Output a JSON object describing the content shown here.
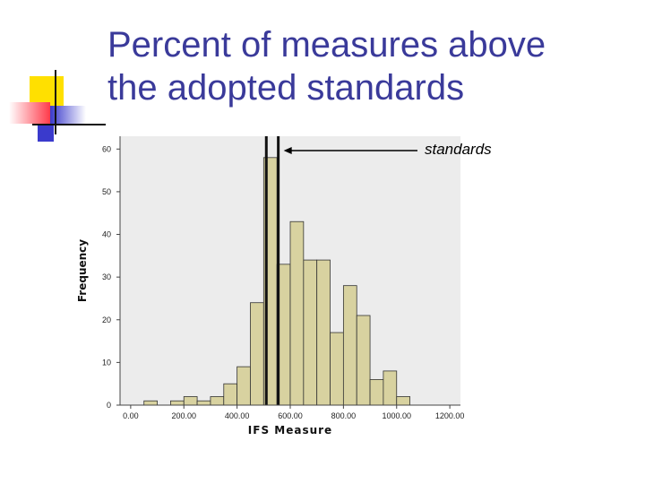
{
  "slide": {
    "title_line1": "Percent of measures above",
    "title_line2": "the adopted standards"
  },
  "decor": {
    "yellow": "#ffe000",
    "red": "#ff3a4a",
    "blue": "#3a3acc",
    "title_color": "#3a3a9a"
  },
  "chart_data": {
    "type": "bar",
    "subtype": "histogram",
    "title": "",
    "xlabel": "IFS Measure",
    "ylabel": "Frequency",
    "xlim": [
      -40,
      1240
    ],
    "ylim": [
      0,
      63
    ],
    "xticks": [
      0,
      200,
      400,
      600,
      800,
      1000,
      1200
    ],
    "xtick_labels": [
      "0.00",
      "200.00",
      "400.00",
      "600.00",
      "800.00",
      "1000.00",
      "1200.00"
    ],
    "yticks": [
      0,
      10,
      20,
      30,
      40,
      50,
      60
    ],
    "ytick_labels": [
      "0",
      "10",
      "20",
      "30",
      "40",
      "50",
      "60"
    ],
    "bin_width": 50,
    "bins": [
      {
        "start": 50,
        "count": 1
      },
      {
        "start": 150,
        "count": 1
      },
      {
        "start": 200,
        "count": 2
      },
      {
        "start": 250,
        "count": 1
      },
      {
        "start": 300,
        "count": 2
      },
      {
        "start": 350,
        "count": 5
      },
      {
        "start": 400,
        "count": 9
      },
      {
        "start": 450,
        "count": 24
      },
      {
        "start": 500,
        "count": 58
      },
      {
        "start": 550,
        "count": 33
      },
      {
        "start": 600,
        "count": 43
      },
      {
        "start": 650,
        "count": 34
      },
      {
        "start": 700,
        "count": 34
      },
      {
        "start": 750,
        "count": 17
      },
      {
        "start": 800,
        "count": 28
      },
      {
        "start": 850,
        "count": 21
      },
      {
        "start": 900,
        "count": 6
      },
      {
        "start": 950,
        "count": 8
      },
      {
        "start": 1000,
        "count": 2
      }
    ],
    "standards": [
      510,
      555
    ],
    "annotation": "standards",
    "grid": false,
    "plot_background": "#ececec",
    "bar_color": "#d8d2a0",
    "bar_edge": "#333333"
  }
}
